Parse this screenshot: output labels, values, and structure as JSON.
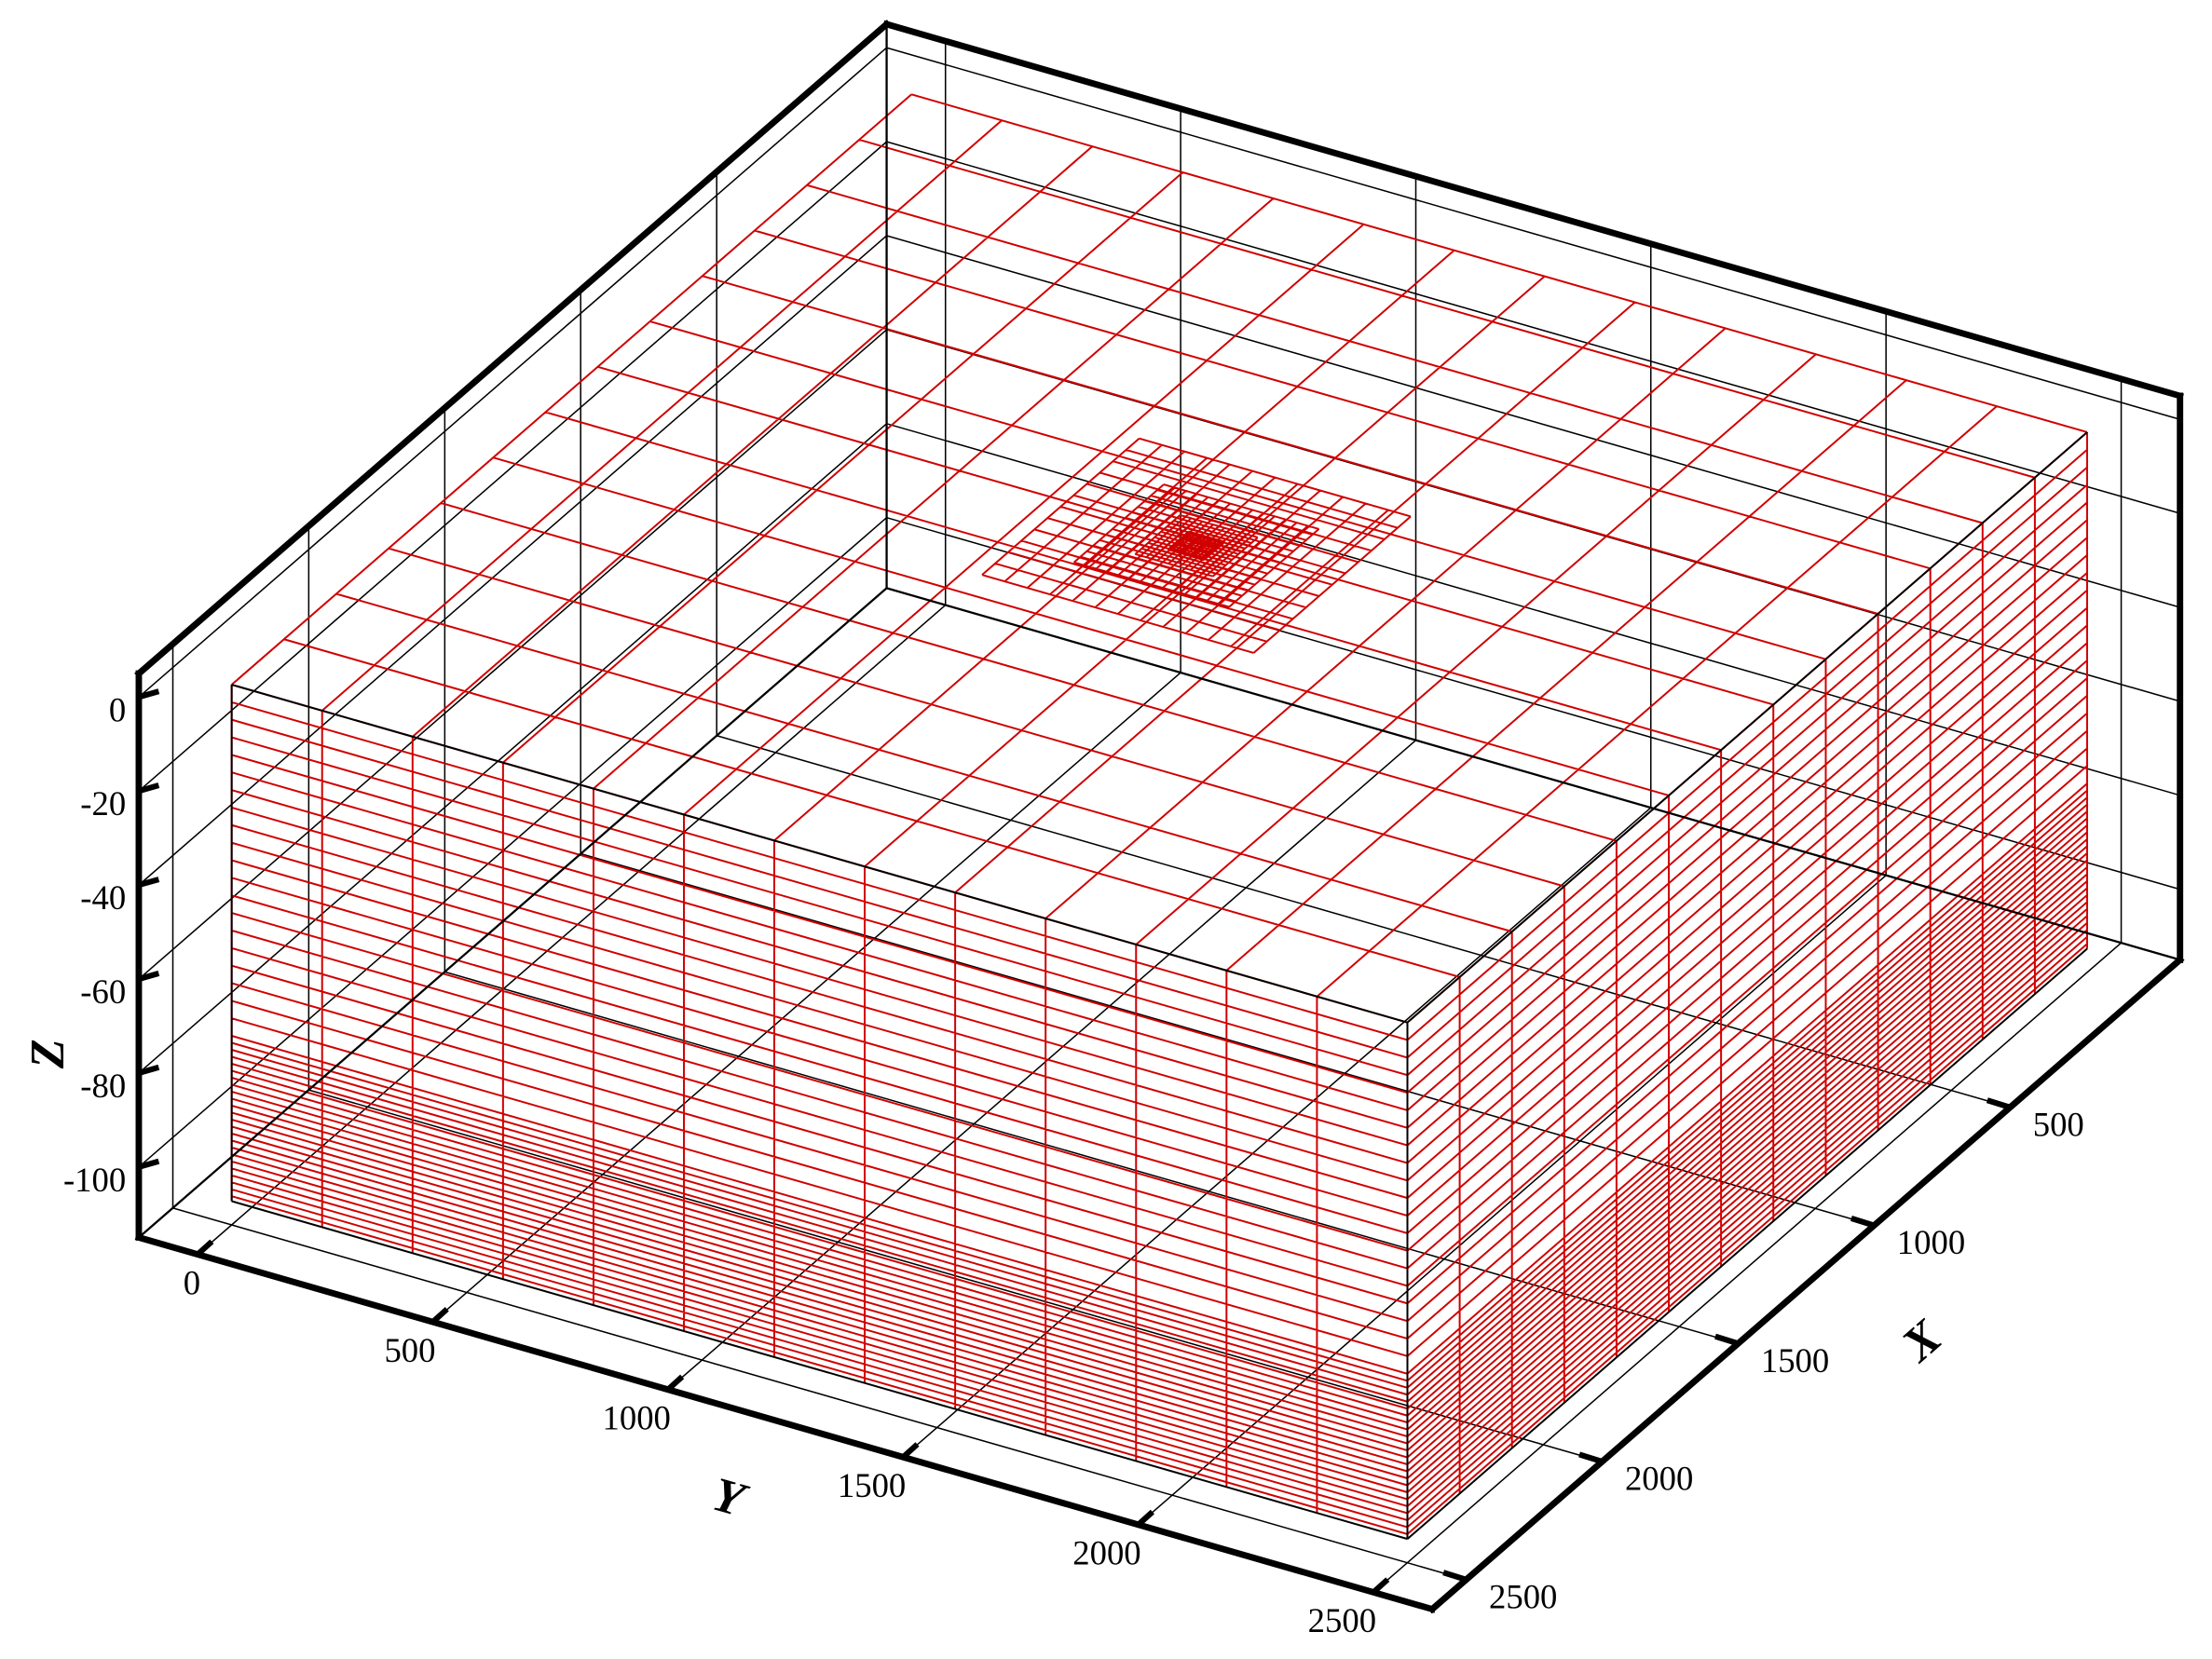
{
  "chart_data": {
    "type": "mesh3d",
    "xlabel": "X",
    "ylabel": "Y",
    "zlabel": "Z",
    "xlim": [
      -125,
      2625
    ],
    "ylim": [
      -125,
      2625
    ],
    "zlim": [
      -115,
      5
    ],
    "xticks": [
      500,
      1000,
      1500,
      2000,
      2500
    ],
    "yticks": [
      0,
      500,
      1000,
      1500,
      2000,
      2500
    ],
    "zticks": [
      0,
      -20,
      -40,
      -60,
      -80,
      -100
    ],
    "color": "#d00000",
    "grid": true
  }
}
